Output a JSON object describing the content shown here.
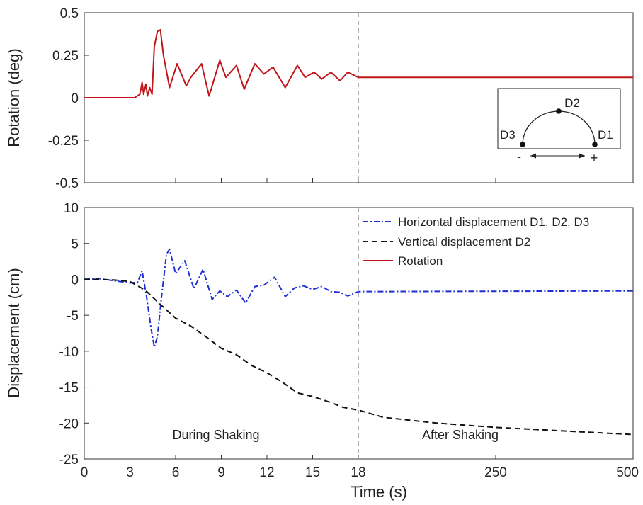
{
  "chart_data": [
    {
      "type": "line",
      "ylabel": "Rotation (deg)",
      "ylim": [
        -0.5,
        0.5
      ],
      "yticks": [
        "0.5",
        "0.25",
        "0",
        "-0.25",
        "-0.5"
      ],
      "ytick_values": [
        0.5,
        0.25,
        0,
        -0.25,
        -0.5
      ],
      "grid": false,
      "series": [
        {
          "name": "Rotation",
          "color": "#c0161b",
          "style": "solid",
          "points": [
            [
              0,
              0
            ],
            [
              3.3,
              0
            ],
            [
              3.65,
              0.02
            ],
            [
              3.8,
              0.09
            ],
            [
              3.9,
              0.02
            ],
            [
              4.05,
              0.08
            ],
            [
              4.15,
              0.01
            ],
            [
              4.3,
              0.06
            ],
            [
              4.45,
              0.02
            ],
            [
              4.6,
              0.3
            ],
            [
              4.8,
              0.39
            ],
            [
              5.0,
              0.4
            ],
            [
              5.2,
              0.25
            ],
            [
              5.6,
              0.06
            ],
            [
              6.1,
              0.2
            ],
            [
              6.7,
              0.07
            ],
            [
              7.0,
              0.12
            ],
            [
              7.7,
              0.2
            ],
            [
              8.2,
              0.01
            ],
            [
              8.9,
              0.22
            ],
            [
              9.3,
              0.12
            ],
            [
              10.0,
              0.19
            ],
            [
              10.5,
              0.05
            ],
            [
              11.2,
              0.2
            ],
            [
              11.8,
              0.14
            ],
            [
              12.4,
              0.18
            ],
            [
              13.2,
              0.06
            ],
            [
              14.0,
              0.19
            ],
            [
              14.5,
              0.12
            ],
            [
              15.1,
              0.15
            ],
            [
              15.6,
              0.11
            ],
            [
              16.2,
              0.15
            ],
            [
              16.8,
              0.1
            ],
            [
              17.3,
              0.15
            ],
            [
              18.0,
              0.12
            ],
            [
              500,
              0.12
            ]
          ]
        }
      ],
      "inset": {
        "labels": {
          "top": "D2",
          "left": "D3",
          "right": "D1"
        },
        "minus": "-",
        "plus": "+"
      }
    },
    {
      "type": "line",
      "ylabel": "Displacement (cm)",
      "xlabel": "Time (s)",
      "ylim": [
        -25,
        10
      ],
      "yticks": [
        "10",
        "5",
        "0",
        "-5",
        "-10",
        "-15",
        "-20",
        "-25"
      ],
      "ytick_values": [
        10,
        5,
        0,
        -5,
        -10,
        -15,
        -20,
        -25
      ],
      "xticks": [
        "0",
        "3",
        "6",
        "9",
        "12",
        "15",
        "18",
        "250",
        "500"
      ],
      "xtick_values": [
        0,
        3,
        6,
        9,
        12,
        15,
        18,
        250,
        500
      ],
      "x_axis_note": "piecewise time axis: linear 0–18 s then compressed 18–500 s",
      "grid": false,
      "divider_x": 18,
      "annotations": {
        "during": "During Shaking",
        "after": "After Shaking"
      },
      "legend_position": "top-right",
      "series": [
        {
          "name": "Horizontal displacement D1, D2, D3",
          "color": "#1f2fd6",
          "style": "dashdot",
          "points": [
            [
              0,
              0
            ],
            [
              1,
              0.1
            ],
            [
              2,
              -0.2
            ],
            [
              3,
              -0.5
            ],
            [
              3.5,
              -0.4
            ],
            [
              3.8,
              1.2
            ],
            [
              4.1,
              -2.5
            ],
            [
              4.4,
              -7
            ],
            [
              4.6,
              -9.4
            ],
            [
              4.8,
              -8
            ],
            [
              5.1,
              -2
            ],
            [
              5.4,
              3.5
            ],
            [
              5.6,
              4.2
            ],
            [
              6.0,
              0.8
            ],
            [
              6.6,
              2.6
            ],
            [
              7.2,
              -1.3
            ],
            [
              7.8,
              1.4
            ],
            [
              8.4,
              -2.8
            ],
            [
              8.9,
              -1.6
            ],
            [
              9.4,
              -2.4
            ],
            [
              10.0,
              -1.5
            ],
            [
              10.6,
              -3.3
            ],
            [
              11.2,
              -1.0
            ],
            [
              11.8,
              -0.8
            ],
            [
              12.5,
              0.3
            ],
            [
              13.2,
              -2.4
            ],
            [
              13.8,
              -1.2
            ],
            [
              14.4,
              -0.9
            ],
            [
              15.0,
              -1.4
            ],
            [
              15.6,
              -1.0
            ],
            [
              16.2,
              -1.7
            ],
            [
              16.8,
              -1.8
            ],
            [
              17.3,
              -2.3
            ],
            [
              18,
              -1.7
            ],
            [
              500,
              -1.6
            ]
          ]
        },
        {
          "name": "Vertical displacement D2",
          "color": "#111111",
          "style": "dashed",
          "points": [
            [
              0,
              0
            ],
            [
              1,
              0
            ],
            [
              2,
              -0.1
            ],
            [
              3,
              -0.3
            ],
            [
              4,
              -1.5
            ],
            [
              5,
              -3.5
            ],
            [
              6,
              -5.4
            ],
            [
              7,
              -6.5
            ],
            [
              8,
              -8
            ],
            [
              9,
              -9.6
            ],
            [
              10,
              -10.5
            ],
            [
              11,
              -12
            ],
            [
              12,
              -13
            ],
            [
              13,
              -14.3
            ],
            [
              14,
              -15.8
            ],
            [
              15,
              -16.3
            ],
            [
              16,
              -17
            ],
            [
              17,
              -17.8
            ],
            [
              18,
              -18.2
            ],
            [
              60,
              -19.2
            ],
            [
              150,
              -20
            ],
            [
              250,
              -20.6
            ],
            [
              400,
              -21.2
            ],
            [
              500,
              -21.6
            ]
          ]
        },
        {
          "name": "Rotation",
          "color": "#c0161b",
          "style": "solid",
          "legend_only": true
        }
      ]
    }
  ]
}
